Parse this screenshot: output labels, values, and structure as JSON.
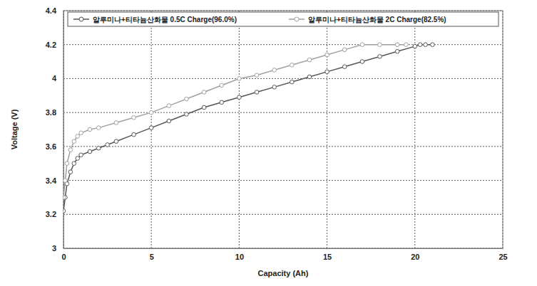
{
  "chart_data": {
    "type": "line",
    "x_label": "Capacity (Ah)",
    "y_label": "Voltage (V)",
    "xlim": [
      0,
      25
    ],
    "xticks": [
      0,
      5,
      10,
      15,
      20,
      25
    ],
    "ylim": [
      3,
      4.4
    ],
    "yticks": [
      3,
      3.2,
      3.4,
      3.6,
      3.8,
      4,
      4.2,
      4.4
    ],
    "grid": true,
    "legend": "top",
    "series": [
      {
        "name": "알루미나+티타늄산화물 0.5C Charge(96.0%)",
        "color": "#555555",
        "marker": "circle",
        "line_style": "solid",
        "x": [
          0,
          0.1,
          0.2,
          0.4,
          0.6,
          0.8,
          1,
          1.5,
          2,
          2.5,
          3,
          4,
          5,
          6,
          7,
          8,
          9,
          10,
          11,
          12,
          13,
          14,
          15,
          16,
          17,
          18,
          19,
          20,
          20.3,
          20.6,
          21
        ],
        "values": [
          3.22,
          3.3,
          3.38,
          3.45,
          3.5,
          3.53,
          3.55,
          3.57,
          3.59,
          3.61,
          3.63,
          3.67,
          3.71,
          3.75,
          3.79,
          3.83,
          3.86,
          3.89,
          3.92,
          3.95,
          3.98,
          4.01,
          4.04,
          4.07,
          4.1,
          4.13,
          4.16,
          4.19,
          4.2,
          4.2,
          4.2
        ]
      },
      {
        "name": "알루미나+티타늄산화물 2C Charge(82.5%)",
        "color": "#a0a0a0",
        "marker": "circle",
        "line_style": "solid",
        "x": [
          0,
          0.1,
          0.2,
          0.4,
          0.6,
          0.8,
          1,
          1.5,
          2,
          3,
          4,
          5,
          6,
          7,
          8,
          9,
          10,
          11,
          12,
          13,
          14,
          15,
          16,
          17,
          18,
          19,
          19.5
        ],
        "values": [
          3.3,
          3.4,
          3.5,
          3.58,
          3.63,
          3.66,
          3.68,
          3.7,
          3.71,
          3.74,
          3.77,
          3.8,
          3.84,
          3.88,
          3.92,
          3.96,
          4.0,
          4.02,
          4.05,
          4.08,
          4.11,
          4.14,
          4.17,
          4.2,
          4.2,
          4.2,
          4.2
        ]
      }
    ]
  }
}
